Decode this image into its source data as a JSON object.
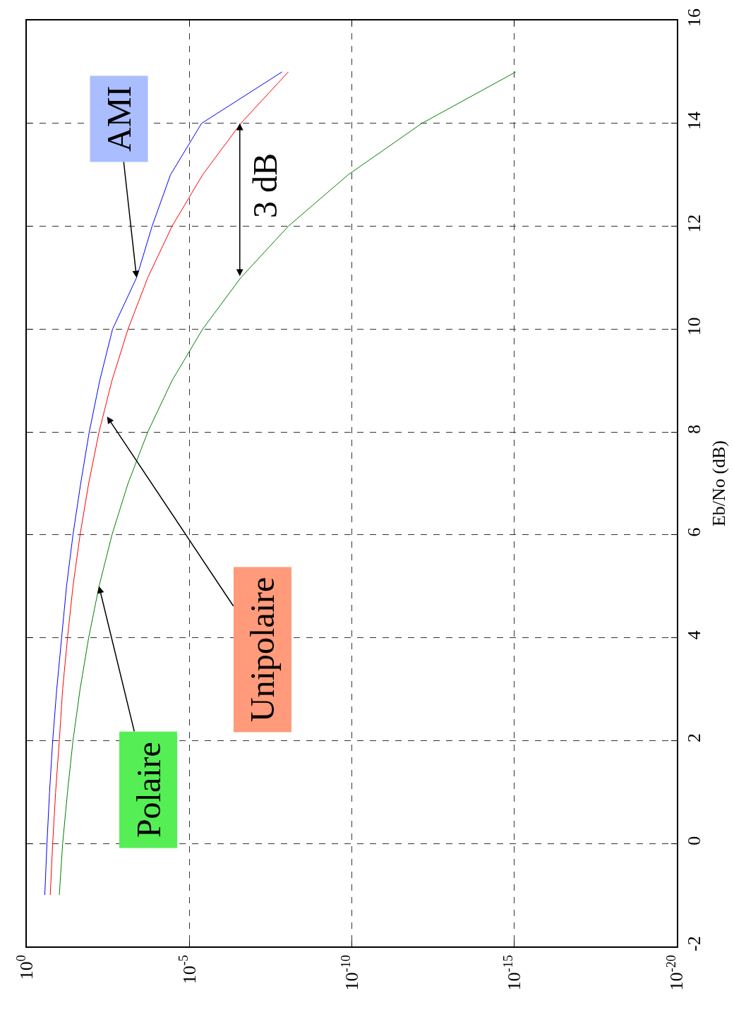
{
  "chart_data": {
    "type": "line",
    "ylabel": "Eb/No (dB)",
    "series": [
      {
        "color": "#0000ff",
        "x": [
          0.28,
          0.24,
          0.2,
          0.16,
          0.12,
          0.085,
          0.06,
          0.038,
          0.022,
          0.012,
          0.0057,
          0.0023,
          0.00042,
          0.00014,
          3.8e-05,
          4.2e-06,
          1.4e-08
        ],
        "values": [
          -1,
          0,
          1,
          2,
          3,
          4,
          5,
          6,
          7,
          8,
          9,
          10,
          11,
          12,
          13,
          14,
          15
        ]
      },
      {
        "color": "#ff0000",
        "x": [
          0.19,
          0.16,
          0.13,
          0.1,
          0.079,
          0.056,
          0.038,
          0.023,
          0.0125,
          0.006,
          0.0024,
          0.00077,
          0.00019,
          3.4e-05,
          3.9e-06,
          2.6e-07,
          9e-09
        ],
        "values": [
          -1,
          0,
          1,
          2,
          3,
          4,
          5,
          6,
          7,
          8,
          9,
          10,
          11,
          12,
          13,
          14,
          15
        ]
      },
      {
        "color": "#008000",
        "x": [
          0.1,
          0.079,
          0.056,
          0.038,
          0.023,
          0.0125,
          0.006,
          0.0024,
          0.00077,
          0.00019,
          3.4e-05,
          3.9e-06,
          2.6e-07,
          9e-09,
          1.3e-10,
          7e-13,
          9e-16
        ],
        "values": [
          -1,
          0,
          1,
          2,
          3,
          4,
          5,
          6,
          7,
          8,
          9,
          10,
          11,
          12,
          13,
          14,
          15
        ]
      }
    ],
    "xlim": [
      1,
      1e-20
    ],
    "xticks": [
      {
        "value": 1,
        "label": "10$^{0}$"
      },
      {
        "value": 1e-05,
        "label": "10$^{-5}$"
      },
      {
        "value": 1e-10,
        "label": "10$^{-10}$"
      },
      {
        "value": 1e-15,
        "label": "10$^{-15}$"
      },
      {
        "value": 1e-20,
        "label": "10$^{-20}$"
      }
    ],
    "ylim": [
      -2,
      16
    ],
    "yticks": [
      -2,
      0,
      2,
      4,
      6,
      8,
      10,
      12,
      14,
      16
    ],
    "log": "x",
    "grid": true,
    "line_style": "solid",
    "marker": "none",
    "annotations": [
      {
        "text": "AMI",
        "x": 0.00042,
        "y": 11
      },
      {
        "text": "Unipolaire",
        "x": 0.0034,
        "y": 8.3
      },
      {
        "text": "Polaire",
        "x": 0.006,
        "y": 5
      },
      {
        "text": "3 dB",
        "x": 2.8e-07,
        "y": 14
      }
    ]
  }
}
